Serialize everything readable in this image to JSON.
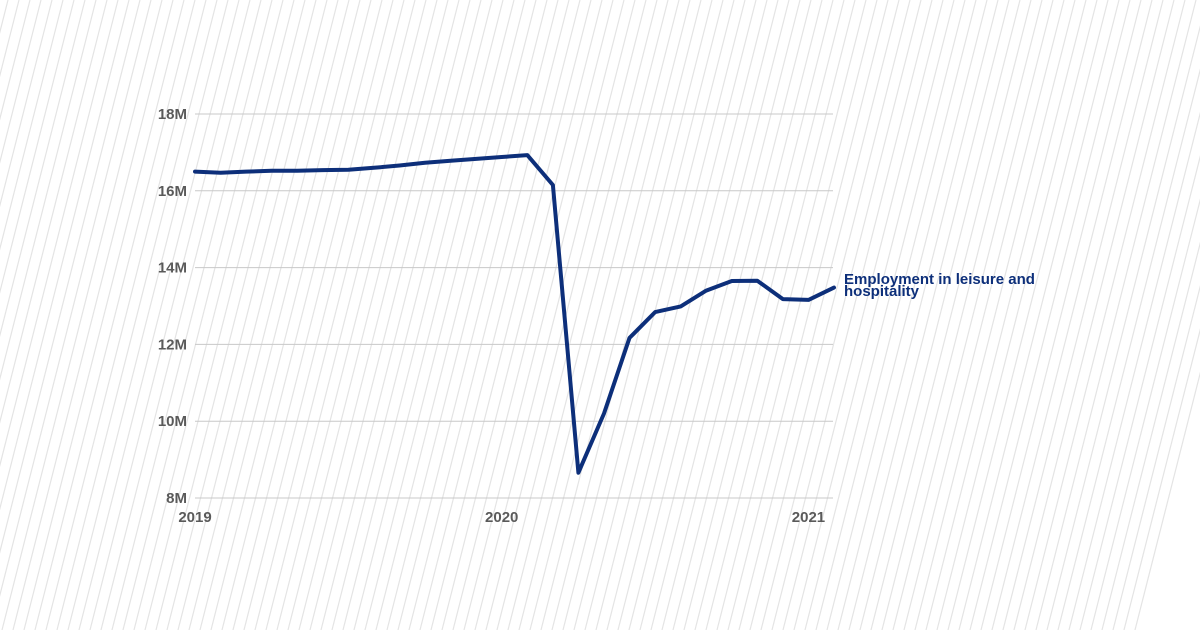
{
  "colors": {
    "line": "#0d2f7a",
    "grid": "#c8c8c8",
    "tick_text": "#5a5a5a",
    "background": "#ffffff",
    "texture": "#e4e4e4"
  },
  "chart_data": {
    "type": "line",
    "title": "",
    "xlabel": "",
    "ylabel": "",
    "x_ticks": [
      {
        "label": "2019",
        "x": 2019.0
      },
      {
        "label": "2020",
        "x": 2020.0
      },
      {
        "label": "2021",
        "x": 2021.0
      }
    ],
    "y_ticks": [
      {
        "label": "8M",
        "y": 8000000
      },
      {
        "label": "10M",
        "y": 10000000
      },
      {
        "label": "12M",
        "y": 12000000
      },
      {
        "label": "14M",
        "y": 14000000
      },
      {
        "label": "16M",
        "y": 16000000
      },
      {
        "label": "18M",
        "y": 18000000
      }
    ],
    "xlim": [
      2019.0,
      2021.08
    ],
    "ylim": [
      8000000,
      18000000
    ],
    "grid": true,
    "series": [
      {
        "name": "Employment in leisure and hospitality",
        "label_lines": [
          "Employment in leisure and",
          "hospitality"
        ],
        "x": [
          "2019-01",
          "2019-02",
          "2019-03",
          "2019-04",
          "2019-05",
          "2019-06",
          "2019-07",
          "2019-08",
          "2019-09",
          "2019-10",
          "2019-11",
          "2019-12",
          "2020-01",
          "2020-02",
          "2020-03",
          "2020-04",
          "2020-05",
          "2020-06",
          "2020-07",
          "2020-08",
          "2020-09",
          "2020-10",
          "2020-11",
          "2020-12",
          "2021-01",
          "2021-02"
        ],
        "values": [
          16500000,
          16470000,
          16500000,
          16520000,
          16520000,
          16540000,
          16550000,
          16600000,
          16660000,
          16730000,
          16780000,
          16830000,
          16880000,
          16930000,
          16150000,
          8660000,
          10200000,
          12170000,
          12840000,
          12990000,
          13400000,
          13650000,
          13660000,
          13180000,
          13160000,
          13480000
        ]
      }
    ]
  }
}
